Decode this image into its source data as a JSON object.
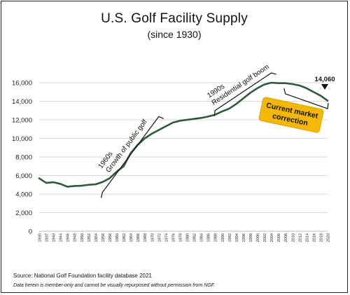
{
  "title": "U.S. Golf Facility Supply",
  "subtitle": "(since 1930)",
  "source": "Source: National Golf Foundation facility database 2021",
  "disclaimer": "Data herein is member-only and cannot be visually repurposed without permission from NGF.",
  "colors": {
    "line": "#2f5a3a",
    "grid": "#d9d9d9",
    "callout_fill": "#f5b800",
    "callout_border": "#d9a100",
    "marker": "#111111"
  },
  "chart_data": {
    "type": "line",
    "title": "U.S. Golf Facility Supply",
    "subtitle": "(since 1930)",
    "xlabel": "",
    "ylabel": "",
    "ylim": [
      0,
      16000
    ],
    "yticks": [
      0,
      2000,
      4000,
      6000,
      8000,
      10000,
      12000,
      14000,
      16000
    ],
    "ytick_labels": [
      "0",
      "2,000",
      "4,000",
      "6,000",
      "8,000",
      "10,000",
      "12,000",
      "14,000",
      "16,000"
    ],
    "xlim": [
      1930,
      2020
    ],
    "xtick_labels": [
      "1930",
      "1937",
      "1940",
      "1944",
      "1946",
      "1948",
      "1950",
      "1952",
      "1954",
      "1956",
      "1958",
      "1960",
      "1962",
      "1964",
      "1966",
      "1968",
      "1970",
      "1972",
      "1974",
      "1976",
      "1978",
      "1980",
      "1982",
      "1984",
      "1986",
      "1988",
      "1990",
      "1992",
      "1994",
      "1996",
      "1998",
      "2000",
      "2002",
      "2004",
      "2006",
      "2008",
      "2010",
      "2012",
      "2014",
      "2016",
      "2018",
      "2020"
    ],
    "grid": "horizontal",
    "series": [
      {
        "x": [
          "1930",
          "1937",
          "1940",
          "1944",
          "1946",
          "1948",
          "1950",
          "1952",
          "1954",
          "1956",
          "1958",
          "1960",
          "1962",
          "1964",
          "1966",
          "1968",
          "1970",
          "1972",
          "1974",
          "1976",
          "1978",
          "1980",
          "1982",
          "1984",
          "1986",
          "1988",
          "1990",
          "1992",
          "1994",
          "1996",
          "1998",
          "2000",
          "2002",
          "2004",
          "2006",
          "2008",
          "2010",
          "2012",
          "2014",
          "2016",
          "2018",
          "2020"
        ],
        "values": [
          5700,
          5200,
          5280,
          5100,
          4800,
          4870,
          4900,
          5000,
          5050,
          5300,
          5700,
          6400,
          7000,
          8400,
          9300,
          10000,
          10500,
          10900,
          11300,
          11700,
          11900,
          12000,
          12100,
          12200,
          12350,
          12550,
          12900,
          13200,
          13700,
          14300,
          14900,
          15400,
          15800,
          16000,
          15950,
          15950,
          15850,
          15700,
          15400,
          15000,
          14600,
          14060
        ]
      }
    ],
    "annotations": [
      {
        "text_lines": [
          "1960s",
          "Growth of public golf"
        ],
        "x_from": "1956",
        "x_to": "1972"
      },
      {
        "text_lines": [
          "1990s",
          "Residential golf boom"
        ],
        "x_from": "1988",
        "x_to": "2004"
      },
      {
        "text_lines": [
          "Current market",
          "correction"
        ],
        "x_from": "2008",
        "x_to": "2020"
      }
    ],
    "end_label": "14,060"
  }
}
